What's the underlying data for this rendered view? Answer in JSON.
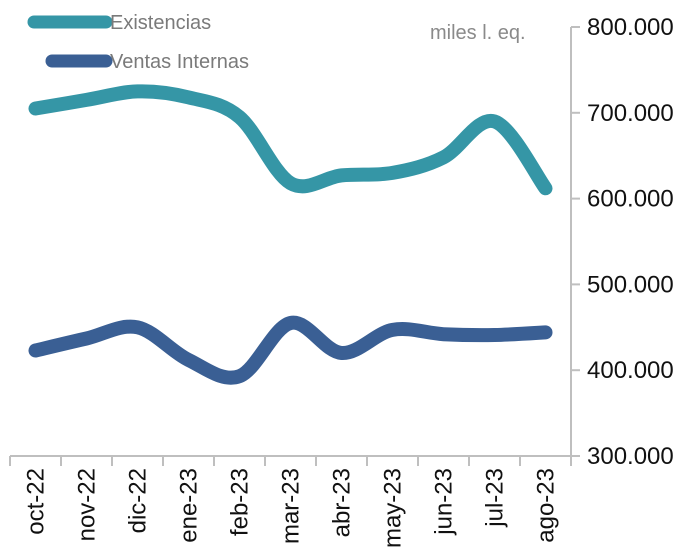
{
  "chart_data": {
    "type": "line",
    "unit_label": "miles l. eq.",
    "categories": [
      "oct-22",
      "nov-22",
      "dic-22",
      "ene-23",
      "feb-23",
      "mar-23",
      "abr-23",
      "may-23",
      "jun-23",
      "jul-23",
      "ago-23"
    ],
    "series": [
      {
        "name": "Existencias",
        "color": "#3596a6",
        "values": [
          705000,
          715000,
          725000,
          718000,
          695000,
          618000,
          627000,
          630000,
          648000,
          690000,
          612000
        ]
      },
      {
        "name": "Ventas Internas",
        "color": "#3a5f94",
        "values": [
          423000,
          437000,
          450000,
          412000,
          393000,
          455000,
          420000,
          447000,
          442000,
          441000,
          444000
        ]
      }
    ],
    "y_ticks": [
      "300.000",
      "400.000",
      "500.000",
      "600.000",
      "700.000",
      "800.000"
    ],
    "ylim": [
      300000,
      800000
    ],
    "y_axis_position": "right",
    "axis_color": "#bfbfbf",
    "grid": false,
    "legend_position": "top-left"
  }
}
